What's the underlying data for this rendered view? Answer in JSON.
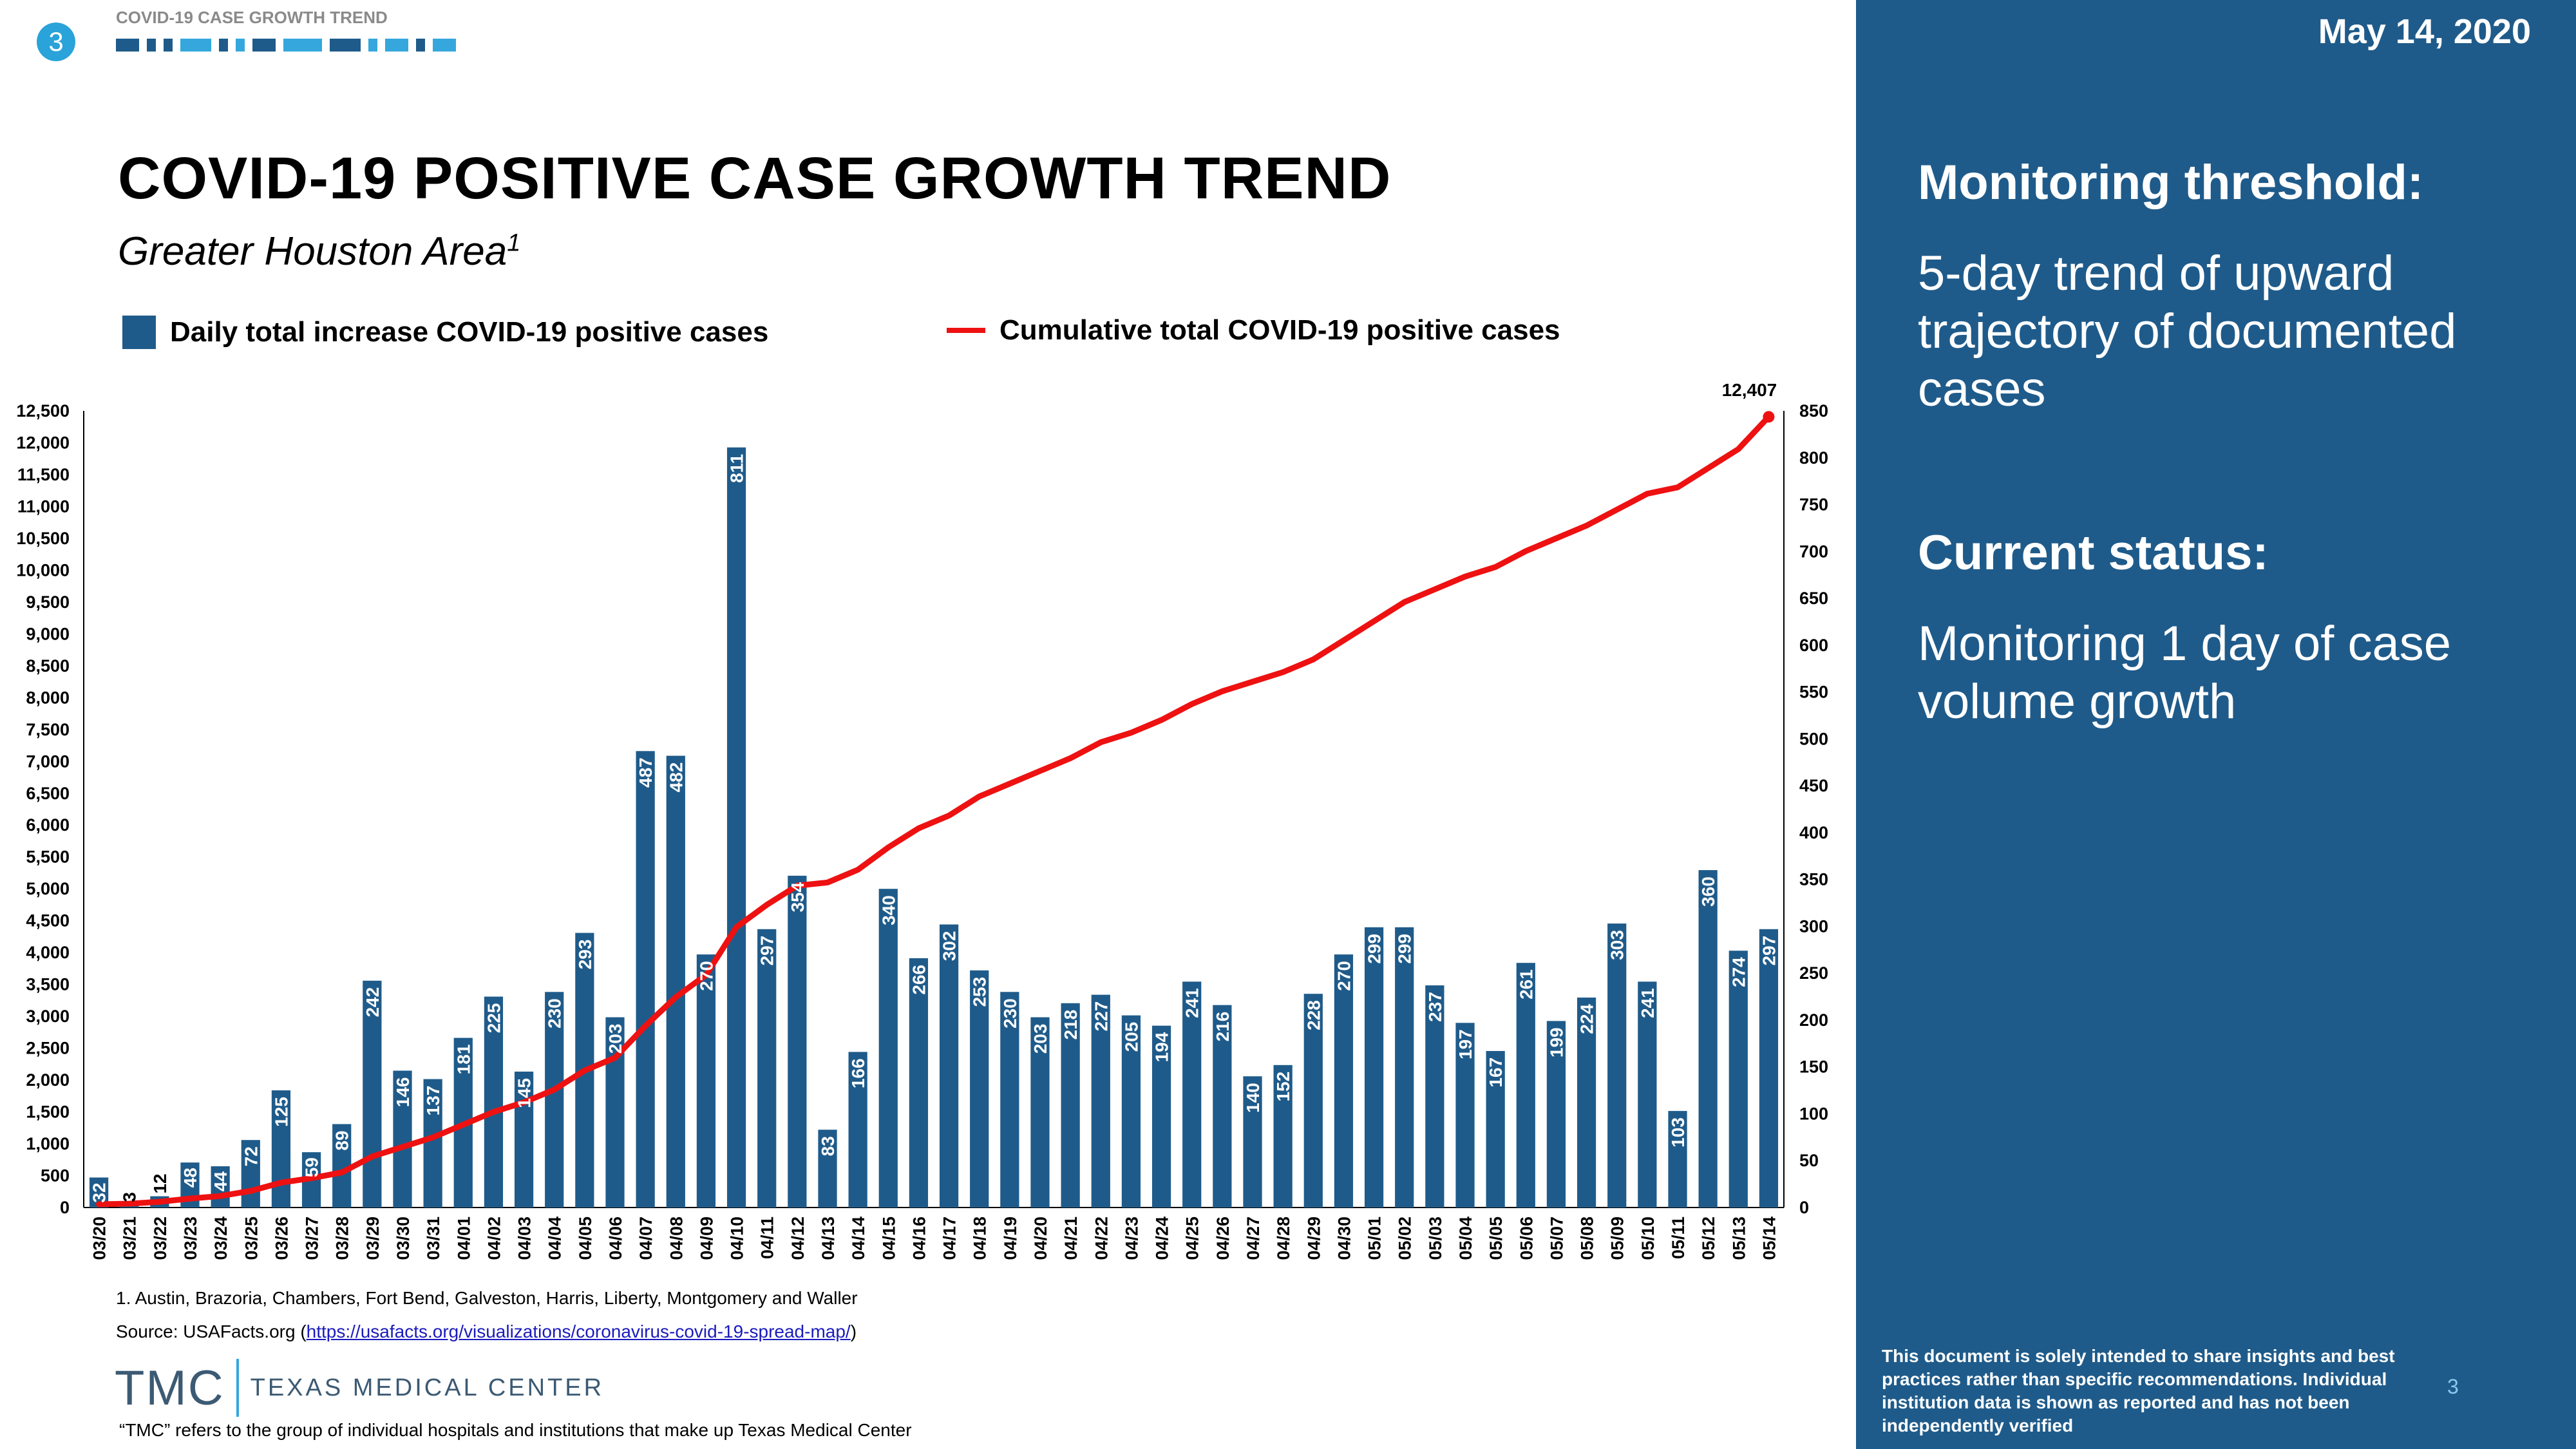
{
  "header": {
    "badge": "3",
    "section_label": "COVID-19 CASE GROWTH TREND",
    "title": "COVID-19 POSITIVE CASE GROWTH TREND",
    "subtitle": "Greater Houston Area",
    "subtitle_sup": "1"
  },
  "legend": {
    "bar_label": "Daily total increase COVID-19 positive cases",
    "line_label": "Cumulative total COVID-19 positive cases"
  },
  "chart_data": {
    "type": "bar",
    "categories": [
      "03/20",
      "03/21",
      "03/22",
      "03/23",
      "03/24",
      "03/25",
      "03/26",
      "03/27",
      "03/28",
      "03/29",
      "03/30",
      "03/31",
      "04/01",
      "04/02",
      "04/03",
      "04/04",
      "04/05",
      "04/06",
      "04/07",
      "04/08",
      "04/09",
      "04/10",
      "04/11",
      "04/12",
      "04/13",
      "04/14",
      "04/15",
      "04/16",
      "04/17",
      "04/18",
      "04/19",
      "04/20",
      "04/21",
      "04/22",
      "04/23",
      "04/24",
      "04/25",
      "04/26",
      "04/27",
      "04/28",
      "04/29",
      "04/30",
      "05/01",
      "05/02",
      "05/03",
      "05/04",
      "05/05",
      "05/06",
      "05/07",
      "05/08",
      "05/09",
      "05/10",
      "05/11",
      "05/12",
      "05/13",
      "05/14"
    ],
    "series": [
      {
        "name": "Daily total increase COVID-19 positive cases",
        "type": "bar",
        "axis": "right",
        "values": [
          32,
          3,
          12,
          48,
          44,
          72,
          125,
          59,
          89,
          242,
          146,
          137,
          181,
          225,
          145,
          230,
          293,
          203,
          487,
          482,
          270,
          811,
          297,
          354,
          83,
          166,
          340,
          266,
          302,
          253,
          230,
          203,
          218,
          227,
          205,
          194,
          241,
          216,
          140,
          152,
          228,
          270,
          299,
          299,
          237,
          197,
          167,
          261,
          199,
          224,
          303,
          241,
          103,
          360,
          274,
          297
        ]
      },
      {
        "name": "Cumulative total COVID-19 positive cases",
        "type": "line",
        "axis": "left",
        "values": [
          50,
          60,
          90,
          140,
          180,
          260,
          390,
          460,
          550,
          800,
          950,
          1100,
          1300,
          1500,
          1650,
          1850,
          2150,
          2350,
          2850,
          3300,
          3650,
          4400,
          4750,
          5050,
          5100,
          5300,
          5650,
          5950,
          6150,
          6450,
          6650,
          6850,
          7050,
          7300,
          7450,
          7650,
          7900,
          8100,
          8250,
          8400,
          8600,
          8900,
          9200,
          9500,
          9700,
          9900,
          10050,
          10300,
          10500,
          10700,
          10950,
          11200,
          11300,
          11600,
          11900,
          12407
        ]
      }
    ],
    "cumulative_label": "12,407",
    "y_left": {
      "min": 0,
      "max": 12500,
      "step": 500
    },
    "y_right": {
      "min": 0,
      "max": 850,
      "step": 50
    },
    "colors": {
      "bar": "#1f5b8a",
      "line": "#ee1111"
    }
  },
  "footnotes": {
    "note1": "1. Austin, Brazoria, Chambers, Fort Bend, Galveston, Harris, Liberty, Montgomery and Waller",
    "source_prefix": "Source: USAFacts.org (",
    "source_link": "https://usafacts.org/visualizations/coronavirus-covid-19-spread-map/",
    "source_suffix": ")",
    "tmc_short": "TMC",
    "tmc_full": "TEXAS MEDICAL CENTER",
    "tmc_note": "“TMC” refers to the group of individual hospitals and institutions that make up Texas Medical Center"
  },
  "sidebar": {
    "date": "May 14, 2020",
    "monitoring_heading": "Monitoring threshold:",
    "monitoring_text": "5-day trend of upward trajectory of documented cases",
    "status_heading": "Current status:",
    "status_text": "Monitoring 1 day of case volume growth",
    "disclaimer": "This document is solely intended to share insights and best practices rather than specific recommendations. Individual institution data is shown as reported and has not been independently verified",
    "page_number": "3"
  }
}
